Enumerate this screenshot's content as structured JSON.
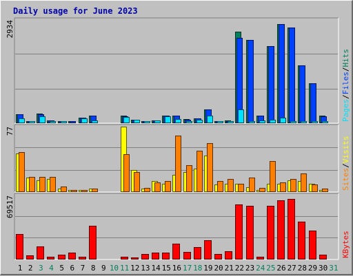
{
  "title": "Daily usage for June 2023",
  "colors": {
    "hits": "#00805c",
    "files": "#0040ff",
    "pages": "#00e0ff",
    "visits": "#ffff00",
    "sites": "#ff8000",
    "kbytes": "#ff0000",
    "weekend_day": "#00805c",
    "weekday": "#000000"
  },
  "chart_data": [
    {
      "type": "bar",
      "panel": "hits-files-pages",
      "ymax_label": "2934",
      "ylim": [
        0,
        2934
      ],
      "grid": true,
      "legend_position": "right",
      "legend": [
        {
          "text": "Pages",
          "color": "#00e0ff"
        },
        {
          "text": "/",
          "color": "#000000"
        },
        {
          "text": "Files",
          "color": "#0040ff"
        },
        {
          "text": "/",
          "color": "#000000"
        },
        {
          "text": "Hits",
          "color": "#00805c"
        }
      ],
      "categories": [
        "1",
        "2",
        "3",
        "4",
        "5",
        "6",
        "7",
        "8",
        "9",
        "10",
        "11",
        "12",
        "13",
        "14",
        "15",
        "16",
        "17",
        "18",
        "19",
        "20",
        "21",
        "22",
        "23",
        "24",
        "25",
        "26",
        "27",
        "28",
        "29",
        "30",
        "31"
      ],
      "series": [
        {
          "name": "Hits",
          "color": "#00805c",
          "values": [
            240,
            40,
            250,
            60,
            45,
            20,
            145,
            200,
            0,
            0,
            190,
            85,
            25,
            60,
            205,
            205,
            90,
            120,
            375,
            30,
            50,
            2590,
            2360,
            200,
            2180,
            2820,
            2720,
            1630,
            1130,
            190,
            0
          ]
        },
        {
          "name": "Files",
          "color": "#0040ff",
          "values": [
            230,
            35,
            240,
            55,
            40,
            15,
            140,
            195,
            0,
            0,
            180,
            80,
            20,
            55,
            195,
            195,
            85,
            115,
            370,
            25,
            45,
            2420,
            2360,
            195,
            2180,
            2820,
            2720,
            1630,
            1130,
            185,
            0
          ]
        },
        {
          "name": "Pages",
          "color": "#00e0ff",
          "values": [
            115,
            25,
            170,
            40,
            25,
            0,
            120,
            55,
            0,
            0,
            150,
            70,
            15,
            50,
            180,
            105,
            45,
            75,
            205,
            15,
            20,
            370,
            20,
            60,
            75,
            130,
            20,
            20,
            20,
            20,
            0
          ]
        }
      ]
    },
    {
      "type": "bar",
      "panel": "visits-sites",
      "ymax_label": "77",
      "ylim": [
        0,
        77
      ],
      "grid": true,
      "legend_position": "right",
      "legend": [
        {
          "text": "Sites",
          "color": "#ff8000"
        },
        {
          "text": "/",
          "color": "#000000"
        },
        {
          "text": "Visits",
          "color": "#ffff00"
        }
      ],
      "categories": [
        "1",
        "2",
        "3",
        "4",
        "5",
        "6",
        "7",
        "8",
        "9",
        "10",
        "11",
        "12",
        "13",
        "14",
        "15",
        "16",
        "17",
        "18",
        "19",
        "20",
        "21",
        "22",
        "23",
        "24",
        "25",
        "26",
        "27",
        "28",
        "29",
        "30",
        "31"
      ],
      "series": [
        {
          "name": "Visits",
          "color": "#ffff00",
          "values": [
            45,
            16,
            13,
            15,
            3,
            2,
            2,
            3,
            0,
            0,
            77,
            25,
            3,
            12,
            9,
            20,
            23,
            27,
            43,
            8,
            9,
            9,
            5,
            2,
            9,
            9,
            13,
            12,
            9,
            2,
            0
          ]
        },
        {
          "name": "Sites",
          "color": "#ff8000",
          "values": [
            47,
            17,
            17,
            17,
            6,
            2,
            2,
            3,
            0,
            0,
            44,
            23,
            4,
            11,
            12,
            66,
            31,
            48,
            57,
            12,
            15,
            9,
            16,
            4,
            36,
            11,
            15,
            21,
            8,
            3,
            0
          ]
        }
      ]
    },
    {
      "type": "bar",
      "panel": "kbytes",
      "ymax_label": "69517",
      "ylim": [
        0,
        69517
      ],
      "grid": true,
      "legend_position": "right",
      "legend": [
        {
          "text": "KBytes",
          "color": "#ff0000"
        }
      ],
      "categories": [
        "1",
        "2",
        "3",
        "4",
        "5",
        "6",
        "7",
        "8",
        "9",
        "10",
        "11",
        "12",
        "13",
        "14",
        "15",
        "16",
        "17",
        "18",
        "19",
        "20",
        "21",
        "22",
        "23",
        "24",
        "25",
        "26",
        "27",
        "28",
        "29",
        "30",
        "31"
      ],
      "series": [
        {
          "name": "KBytes",
          "color": "#ff0000",
          "values": [
            27000,
            3500,
            13500,
            2000,
            4500,
            6500,
            2000,
            36000,
            0,
            0,
            2000,
            1500,
            5500,
            6500,
            6500,
            16500,
            7500,
            12500,
            20500,
            5000,
            8000,
            60000,
            58000,
            2500,
            58500,
            64000,
            66000,
            41000,
            31000,
            4500,
            0
          ]
        }
      ]
    }
  ],
  "x_axis": {
    "labels": [
      "1",
      "2",
      "3",
      "4",
      "5",
      "6",
      "7",
      "8",
      "9",
      "10",
      "11",
      "12",
      "13",
      "14",
      "15",
      "16",
      "17",
      "18",
      "19",
      "20",
      "21",
      "22",
      "23",
      "24",
      "25",
      "26",
      "27",
      "28",
      "29",
      "30",
      "31"
    ],
    "weekend": [
      false,
      false,
      true,
      true,
      false,
      false,
      false,
      false,
      false,
      true,
      true,
      false,
      false,
      false,
      false,
      false,
      true,
      true,
      false,
      false,
      false,
      false,
      false,
      true,
      true,
      false,
      false,
      false,
      false,
      false,
      true
    ]
  }
}
